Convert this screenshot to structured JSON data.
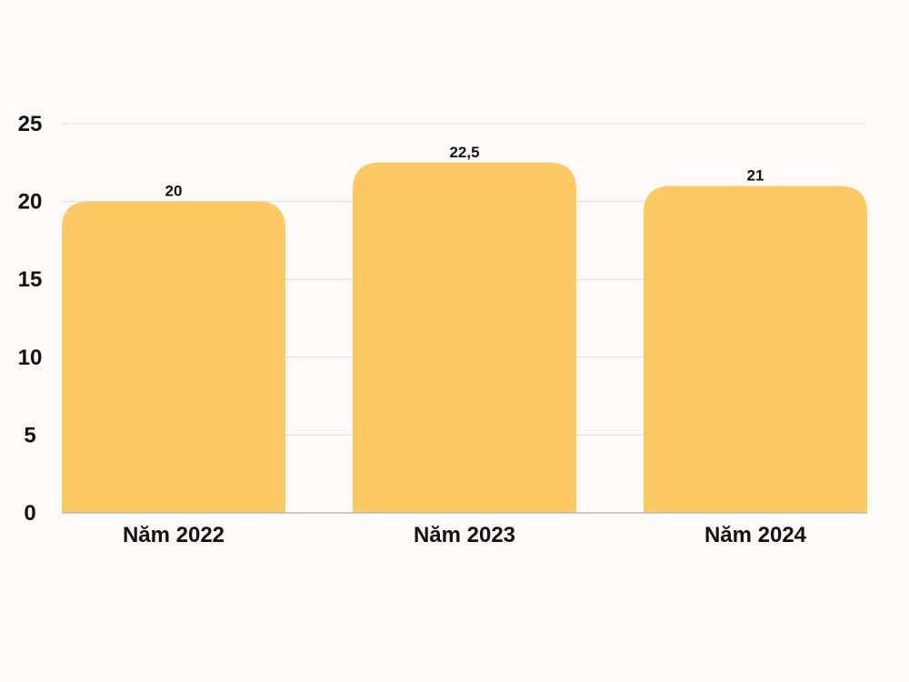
{
  "chart_data": {
    "type": "bar",
    "categories": [
      "Năm 2022",
      "Năm 2023",
      "Năm 2024"
    ],
    "values": [
      20,
      22.5,
      21
    ],
    "data_labels": [
      "20",
      "22,5",
      "21"
    ],
    "yticks": [
      "0",
      "5",
      "10",
      "15",
      "20",
      "25"
    ],
    "ylim": [
      0,
      25
    ],
    "grid": true,
    "colors": {
      "bar": "#fcc965",
      "grid": "#dddddd",
      "axis": "#bbbbbb",
      "background": "#fdfaf8"
    }
  }
}
